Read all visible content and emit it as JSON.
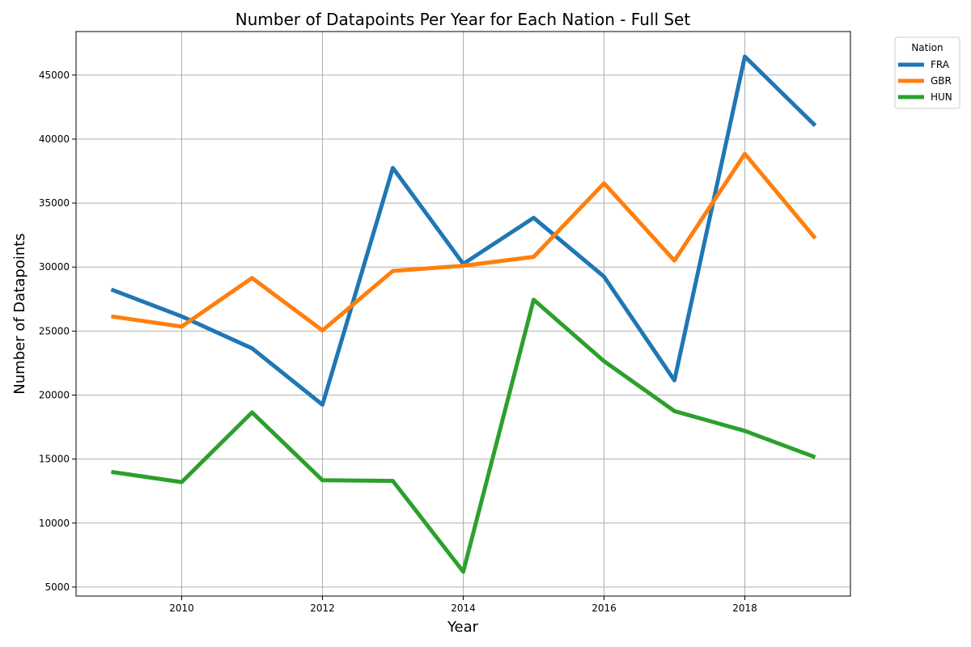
{
  "chart_data": {
    "type": "line",
    "title": "Number of Datapoints Per Year for Each Nation - Full Set",
    "xlabel": "Year",
    "ylabel": "Number of Datapoints",
    "x": [
      2009,
      2010,
      2011,
      2012,
      2013,
      2014,
      2015,
      2016,
      2017,
      2018,
      2019
    ],
    "xlim": [
      2008.5,
      2019.5
    ],
    "ylim": [
      4300,
      48400
    ],
    "xticks": [
      2010,
      2012,
      2014,
      2016,
      2018
    ],
    "yticks": [
      5000,
      10000,
      15000,
      20000,
      25000,
      30000,
      35000,
      40000,
      45000
    ],
    "grid": true,
    "legend": {
      "title": "Nation",
      "placement": "outside upper right"
    },
    "series": [
      {
        "name": "FRA",
        "color": "#1f77b4",
        "values": [
          28250,
          26150,
          23650,
          19250,
          37750,
          30250,
          33850,
          29250,
          21150,
          46450,
          41050
        ]
      },
      {
        "name": "GBR",
        "color": "#ff7f0e",
        "values": [
          26150,
          25350,
          29150,
          25050,
          29700,
          30100,
          30800,
          36550,
          30500,
          38850,
          32250
        ]
      },
      {
        "name": "HUN",
        "color": "#2ca02c",
        "values": [
          14000,
          13200,
          18650,
          13350,
          13300,
          6200,
          27450,
          22650,
          18750,
          17200,
          15150
        ]
      }
    ]
  }
}
